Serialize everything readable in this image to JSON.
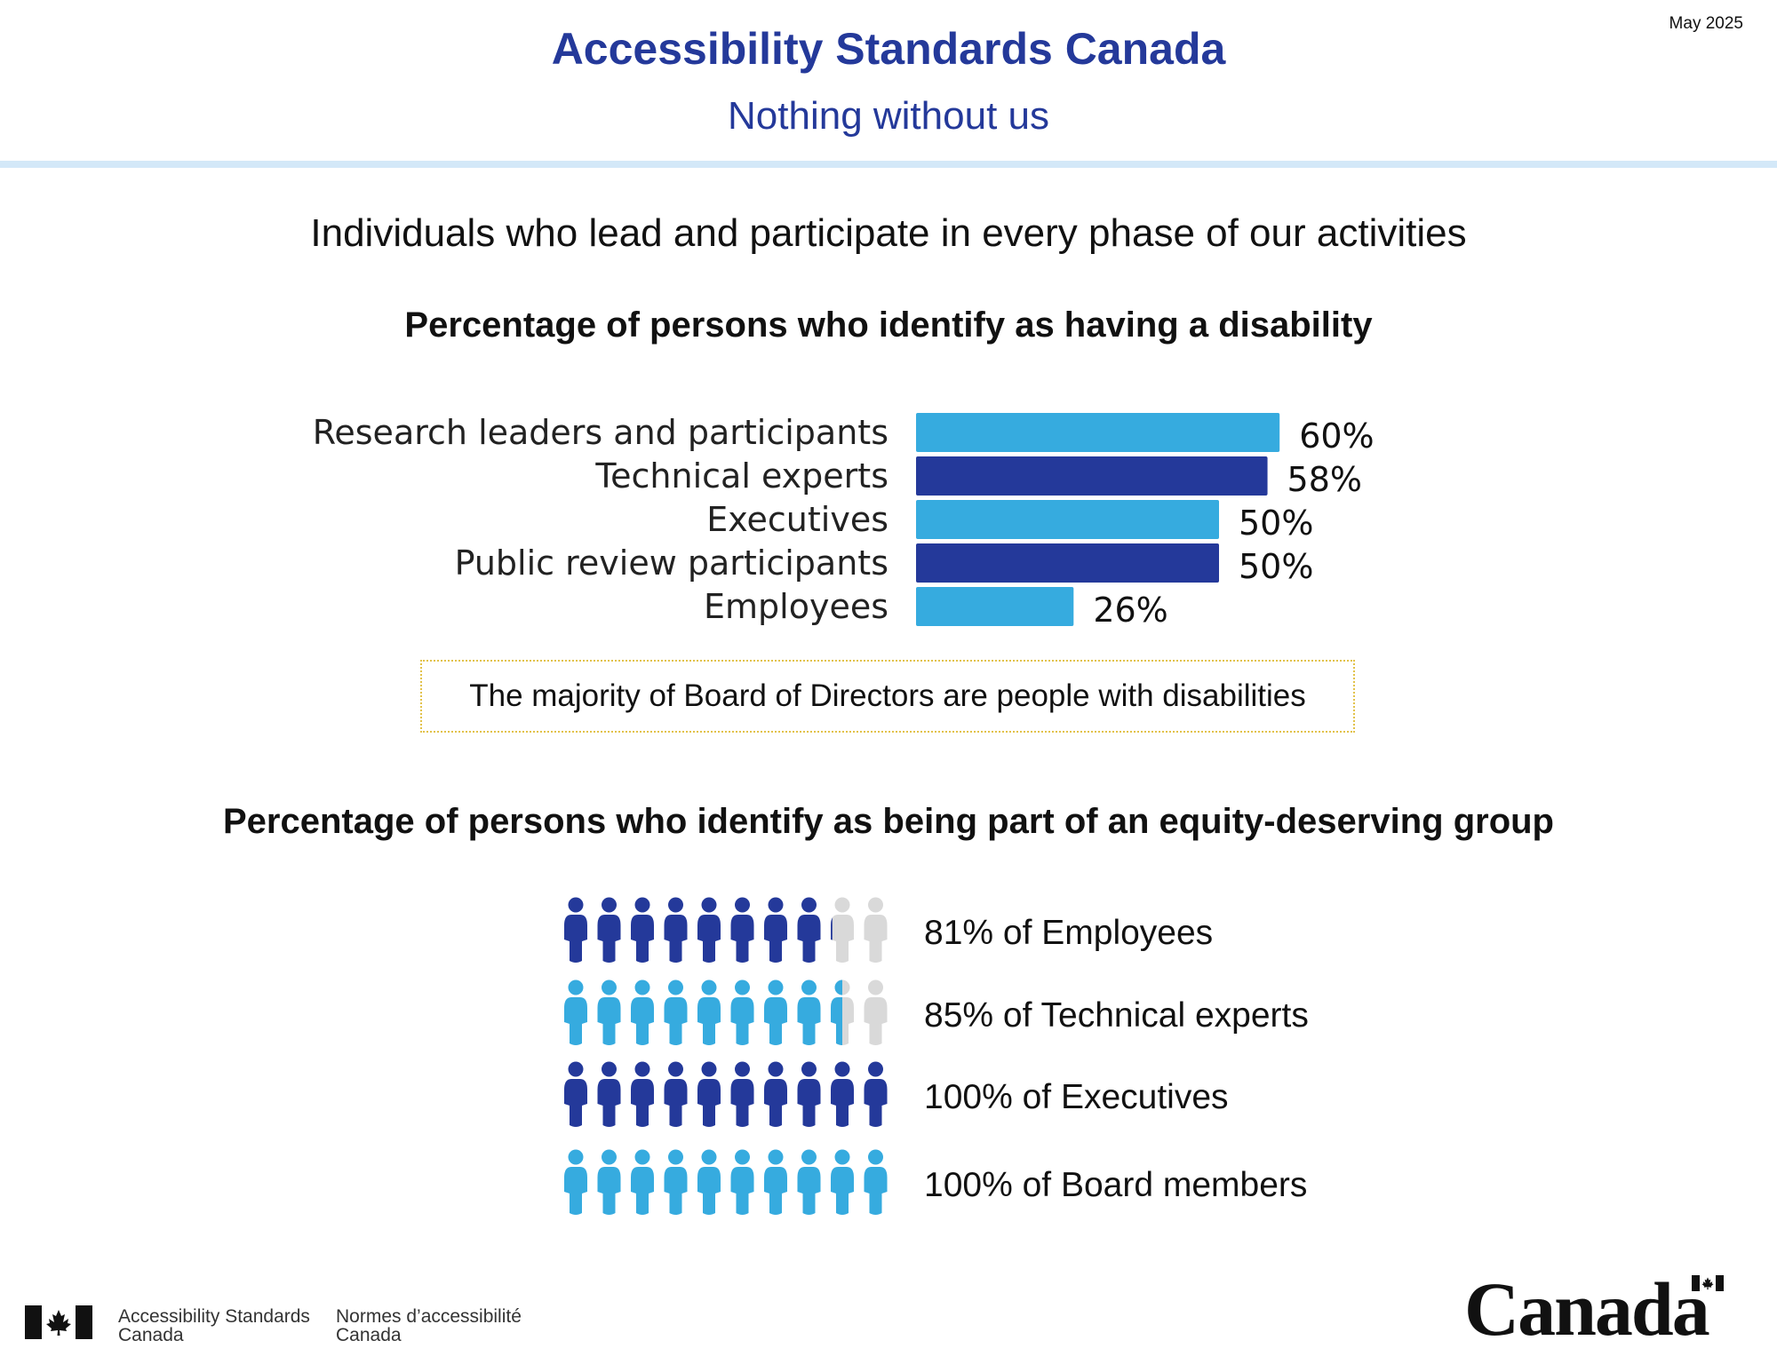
{
  "header": {
    "date": "May 2025",
    "title": "Accessibility Standards Canada",
    "subtitle": "Nothing without us"
  },
  "tagline": "Individuals who lead and participate in every phase of our activities",
  "chart_data": [
    {
      "type": "bar",
      "orientation": "horizontal",
      "title": "Percentage of persons who identify as having a disability",
      "categories": [
        "Research leaders and participants",
        "Technical experts",
        "Executives",
        "Public review participants",
        "Employees"
      ],
      "values": [
        60,
        58,
        50,
        50,
        26
      ],
      "value_labels": [
        "60%",
        "58%",
        "50%",
        "50%",
        "26%"
      ],
      "colors": [
        "#36abdf",
        "#24399a",
        "#36abdf",
        "#24399a",
        "#36abdf"
      ],
      "xlim": [
        0,
        100
      ],
      "grid": false
    },
    {
      "type": "pictograph",
      "title": "Percentage of persons who identify as being part of an equity-deserving group",
      "icons_per_row": 10,
      "filled_fractions": [
        0.81,
        0.85,
        1.0,
        1.0
      ],
      "values": [
        81,
        85,
        100,
        100
      ],
      "labels": [
        "81% of Employees",
        "85% of Technical experts",
        "100% of Executives",
        "100% of Board members"
      ],
      "colors": [
        "#24399a",
        "#36abdf",
        "#24399a",
        "#36abdf"
      ],
      "empty_color": "#d9d9d9"
    }
  ],
  "note": "The majority of Board of Directors are people with disabilities",
  "footer": {
    "org_en_line1": "Accessibility Standards",
    "org_en_line2": "Canada",
    "org_fr_line1": "Normes d’accessibilité",
    "org_fr_line2": "Canada",
    "wordmark": "Canada"
  }
}
